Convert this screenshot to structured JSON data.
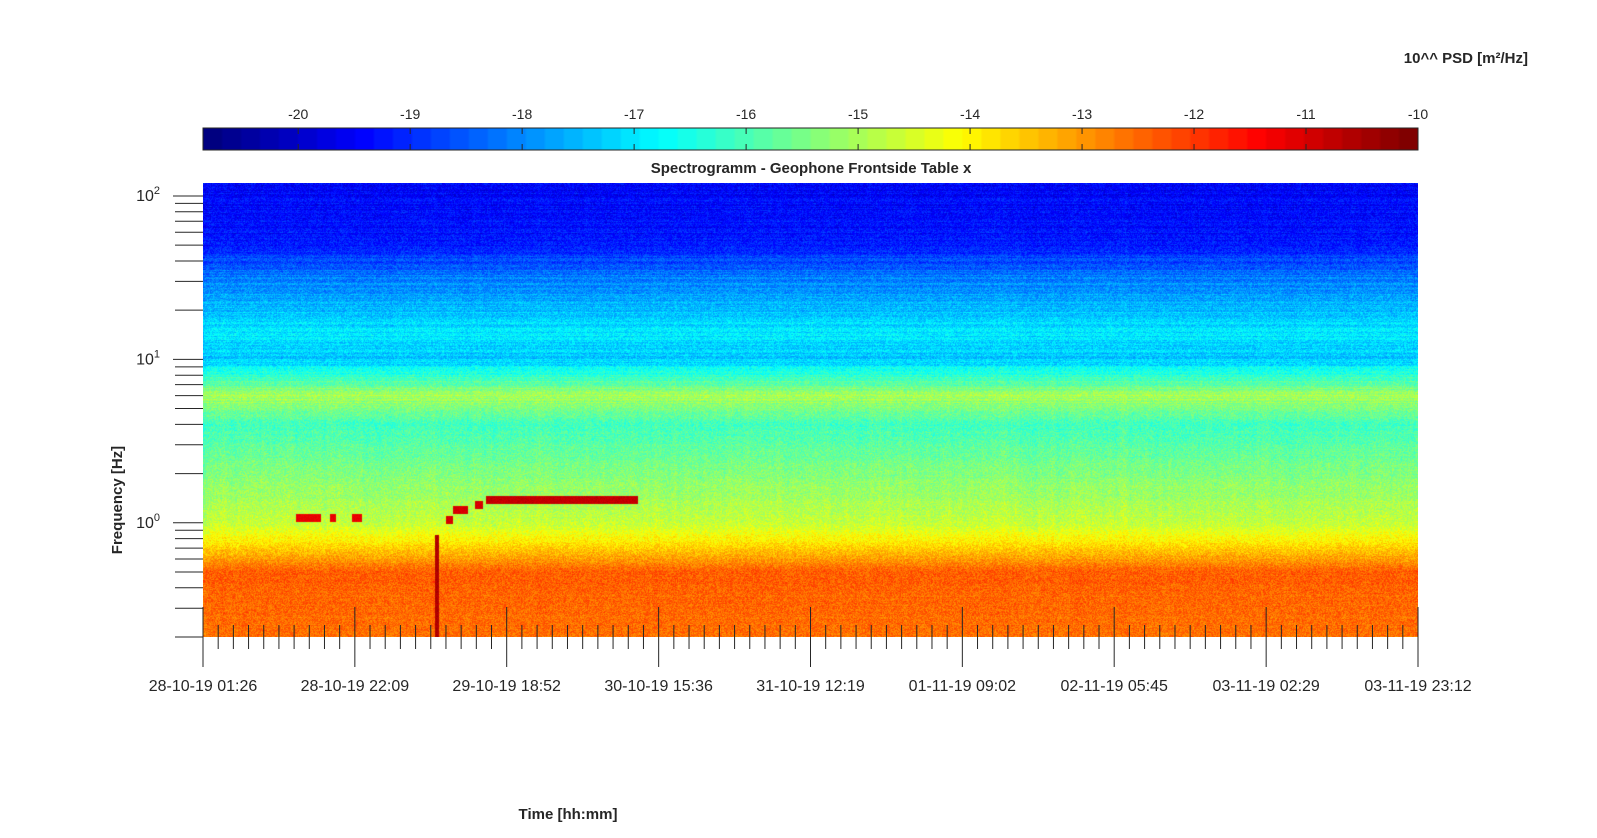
{
  "chart_data": {
    "type": "heatmap",
    "title": "Spectrogramm - Geophone Frontside Table x",
    "xlabel": "Time [hh:mm]",
    "ylabel": "Frequency [Hz]",
    "colorbar_label": "10^^ PSD [m²/Hz]",
    "colormap": "jet",
    "colorbar_range": [
      -20.85,
      -10
    ],
    "colorbar_ticks": [
      "-20",
      "-19",
      "-18",
      "-17",
      "-16",
      "-15",
      "-14",
      "-13",
      "-12",
      "-11",
      "-10"
    ],
    "y_scale": "log",
    "ylim": [
      0.2,
      120
    ],
    "y_ticks": [
      {
        "base": "10",
        "exp": "2"
      },
      {
        "base": "10",
        "exp": "1"
      },
      {
        "base": "10",
        "exp": "0"
      }
    ],
    "xlim": [
      "28-10-19 01:26",
      "03-11-19 23:12"
    ],
    "x_ticks": [
      "28-10-19 01:26",
      "28-10-19 22:09",
      "29-10-19 18:52",
      "30-10-19 15:36",
      "31-10-19 12:19",
      "01-11-19 09:02",
      "02-11-19 05:45",
      "03-11-19 02:29",
      "03-11-19 23:12"
    ],
    "approx_psd_by_frequency_log10": [
      {
        "hz": 0.2,
        "psd": -12.6
      },
      {
        "hz": 0.5,
        "psd": -12.4
      },
      {
        "hz": 0.75,
        "psd": -13.8
      },
      {
        "hz": 1.0,
        "psd": -14.7
      },
      {
        "hz": 2.0,
        "psd": -15.4
      },
      {
        "hz": 4.0,
        "psd": -16.1
      },
      {
        "hz": 6.0,
        "psd": -15.0
      },
      {
        "hz": 10.0,
        "psd": -17.3
      },
      {
        "hz": 15.0,
        "psd": -17.0
      },
      {
        "hz": 30.0,
        "psd": -18.0
      },
      {
        "hz": 50.0,
        "psd": -19.2
      },
      {
        "hz": 100.0,
        "psd": -19.4
      }
    ],
    "events": [
      {
        "start": "28-10-19 14:00",
        "end": "28-10-19 17:30",
        "hz": 1.08,
        "psd": -11.2
      },
      {
        "start": "28-10-19 18:40",
        "end": "28-10-19 19:30",
        "hz": 1.08,
        "psd": -11.2
      },
      {
        "start": "28-10-19 21:40",
        "end": "28-10-19 23:00",
        "hz": 1.08,
        "psd": -11.2
      },
      {
        "start": "29-10-19 09:00",
        "end": "29-10-19 09:30",
        "hz_range": [
          0.2,
          0.85
        ],
        "psd": -10.6
      },
      {
        "start": "29-10-19 10:30",
        "end": "29-10-19 11:30",
        "hz": 1.05,
        "psd": -11.0
      },
      {
        "start": "29-10-19 11:30",
        "end": "29-10-19 13:30",
        "hz": 1.2,
        "psd": -11.0
      },
      {
        "start": "29-10-19 14:30",
        "end": "29-10-19 15:30",
        "hz": 1.3,
        "psd": -11.0
      },
      {
        "start": "29-10-19 16:00",
        "end": "30-10-19 12:40",
        "hz": 1.38,
        "psd": -10.8
      }
    ]
  }
}
